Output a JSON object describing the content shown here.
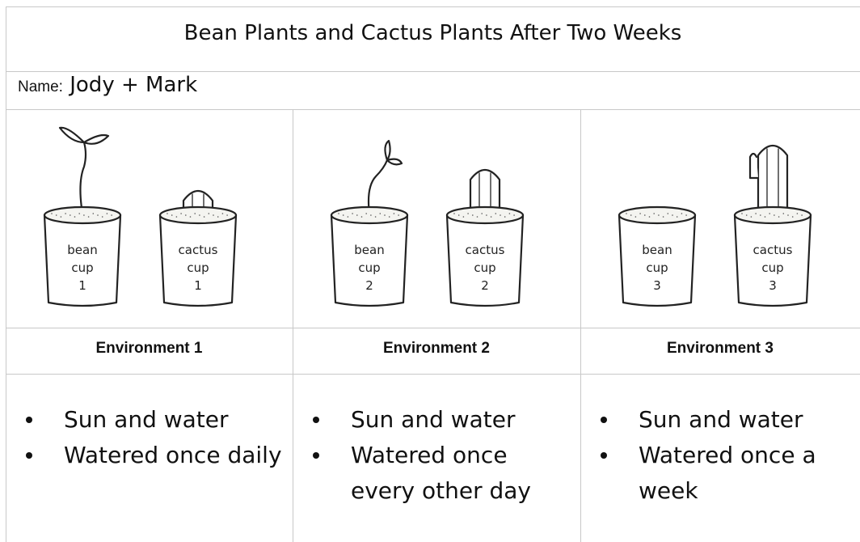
{
  "title": "Bean Plants and Cactus Plants After Two Weeks",
  "name_label": "Name:",
  "name_value": "Jody + Mark",
  "environments": [
    {
      "label": "Environment 1",
      "cups": [
        {
          "lines": [
            "bean",
            "cup",
            "1"
          ]
        },
        {
          "lines": [
            "cactus",
            "cup",
            "1"
          ]
        }
      ],
      "notes": [
        "Sun and water",
        "Watered once daily"
      ]
    },
    {
      "label": "Environment 2",
      "cups": [
        {
          "lines": [
            "bean",
            "cup",
            "2"
          ]
        },
        {
          "lines": [
            "cactus",
            "cup",
            "2"
          ]
        }
      ],
      "notes": [
        "Sun and water",
        "Watered once every other day"
      ]
    },
    {
      "label": "Environment 3",
      "cups": [
        {
          "lines": [
            "bean",
            "cup",
            "3"
          ]
        },
        {
          "lines": [
            "cactus",
            "cup",
            "3"
          ]
        }
      ],
      "notes": [
        "Sun and water",
        "Watered once a week"
      ]
    }
  ]
}
